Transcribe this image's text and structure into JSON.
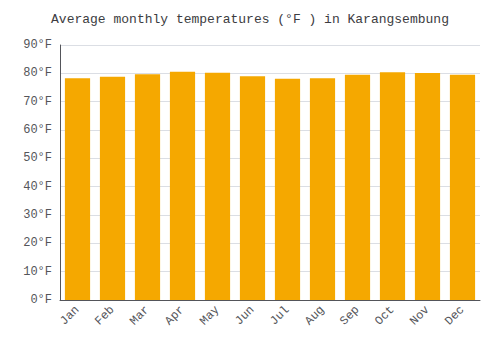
{
  "chart_data": {
    "type": "bar",
    "title": "Average monthly temperatures (°F ) in Karangsembung",
    "categories": [
      "Jan",
      "Feb",
      "Mar",
      "Apr",
      "May",
      "Jun",
      "Jul",
      "Aug",
      "Sep",
      "Oct",
      "Nov",
      "Dec"
    ],
    "values": [
      78.3,
      78.8,
      79.7,
      80.6,
      80.2,
      79.0,
      78.1,
      78.3,
      79.5,
      80.4,
      80.1,
      79.5
    ],
    "color": "#F5A800",
    "ylim": [
      0,
      90
    ],
    "yticks": [
      {
        "value": 0,
        "label": "0°F"
      },
      {
        "value": 10,
        "label": "10°F"
      },
      {
        "value": 20,
        "label": "20°F"
      },
      {
        "value": 30,
        "label": "30°F"
      },
      {
        "value": 40,
        "label": "40°F"
      },
      {
        "value": 50,
        "label": "50°F"
      },
      {
        "value": 60,
        "label": "60°F"
      },
      {
        "value": 70,
        "label": "70°F"
      },
      {
        "value": 80,
        "label": "80°F"
      },
      {
        "value": 90,
        "label": "90°F"
      }
    ],
    "grid": true
  }
}
